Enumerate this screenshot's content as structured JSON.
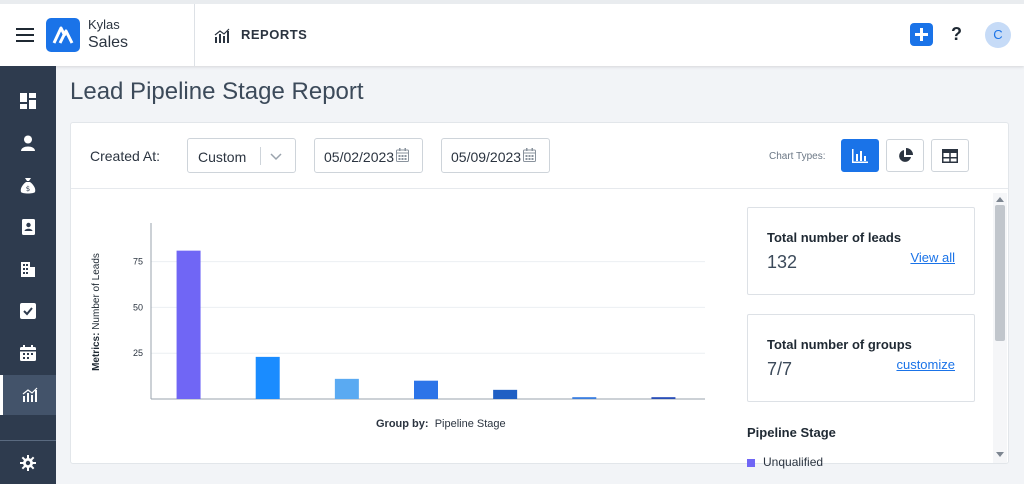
{
  "header": {
    "brand_top": "Kylas",
    "brand_bottom": "Sales",
    "section": "REPORTS",
    "help": "?",
    "avatar_initial": "C"
  },
  "sidebar": {
    "items": [
      {
        "icon": "dashboard-icon"
      },
      {
        "icon": "person-icon"
      },
      {
        "icon": "money-bag-icon"
      },
      {
        "icon": "contacts-icon"
      },
      {
        "icon": "building-icon"
      },
      {
        "icon": "task-check-icon"
      },
      {
        "icon": "calendar-icon"
      },
      {
        "icon": "reports-icon",
        "active": true
      }
    ],
    "footer_icon": "gear-icon"
  },
  "page": {
    "title": "Lead Pipeline Stage Report"
  },
  "filters": {
    "created_label": "Created At:",
    "range_value": "Custom",
    "start_date": "05/02/2023",
    "end_date": "05/09/2023",
    "chart_types_label": "Chart Types:"
  },
  "summary": {
    "leads_title": "Total number of leads",
    "leads_value": "132",
    "leads_link": "View all",
    "groups_title": "Total number of groups",
    "groups_value": "7/7",
    "groups_link": "customize"
  },
  "legend": {
    "title": "Pipeline Stage",
    "first_item": "Unqualified"
  },
  "colors": {
    "accent": "#1a73e8",
    "sidebar": "#2e3b4e"
  },
  "chart_data": {
    "type": "bar",
    "ylabel_prefix": "Metrics:",
    "ylabel": "Number of Leads",
    "xlabel_prefix": "Group by:",
    "xlabel": "Pipeline Stage",
    "ylim": [
      0,
      95
    ],
    "yticks": [
      25,
      50,
      75
    ],
    "categories": [
      "Unqualified",
      "",
      "",
      "",
      "",
      "",
      ""
    ],
    "values": [
      81,
      23,
      11,
      10,
      5,
      1,
      1
    ],
    "colors": [
      "#7066f5",
      "#1a8cff",
      "#5aaaf2",
      "#2c74e8",
      "#1f5fc4",
      "#3c7fe0",
      "#2a4fb8"
    ]
  }
}
